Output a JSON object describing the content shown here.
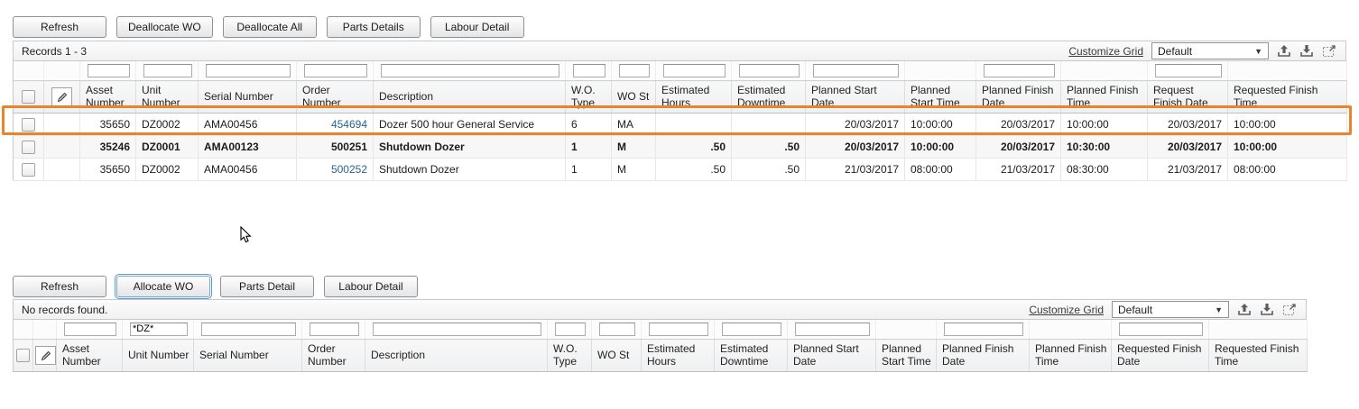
{
  "colors": {
    "highlight_border": "#E8842B",
    "order_link_blue": "#28628F",
    "focus_ring_blue": "#5B9BD5"
  },
  "top_panel": {
    "buttons": [
      "Refresh",
      "Deallocate WO",
      "Deallocate All",
      "Parts Details",
      "Labour Detail"
    ],
    "records_label": "Records 1 - 3",
    "customize_grid_label": "Customize Grid",
    "grid_format": "Default",
    "icons": [
      "chevron-down-icon",
      "export-grid-icon",
      "import-grid-icon",
      "expand-grid-icon",
      "row-edit-pencil-icon"
    ],
    "columns": [
      "Asset Number",
      "Unit Number",
      "Serial Number",
      "Order Number",
      "Description",
      "W.O. Type",
      "WO St",
      "Estimated Hours",
      "Estimated Downtime",
      "Planned Start Date",
      "Planned Start Time",
      "Planned Finish Date",
      "Planned Finish Time",
      "Request Finish Date",
      "Requested Finish Time"
    ],
    "rows": [
      {
        "asset_number": "35650",
        "unit_number": "DZ0002",
        "serial_number": "AMA00456",
        "order_number": "454694",
        "description": "Dozer 500 hour General Service",
        "wo_type": "6",
        "wo_status": "MA",
        "estimated_hours": "",
        "estimated_downtime": "",
        "planned_start_date": "20/03/2017",
        "planned_start_time": "10:00:00",
        "planned_finish_date": "20/03/2017",
        "planned_finish_time": "10:00:00",
        "request_finish_date": "20/03/2017",
        "requested_finish_time": "10:00:00",
        "highlighted": true,
        "bold": false,
        "order_is_link": true
      },
      {
        "asset_number": "35246",
        "unit_number": "DZ0001",
        "serial_number": "AMA00123",
        "order_number": "500251",
        "description": "Shutdown Dozer",
        "wo_type": "1",
        "wo_status": "M",
        "estimated_hours": ".50",
        "estimated_downtime": ".50",
        "planned_start_date": "20/03/2017",
        "planned_start_time": "10:00:00",
        "planned_finish_date": "20/03/2017",
        "planned_finish_time": "10:30:00",
        "request_finish_date": "20/03/2017",
        "requested_finish_time": "10:00:00",
        "highlighted": false,
        "bold": true,
        "order_is_link": false
      },
      {
        "asset_number": "35650",
        "unit_number": "DZ0002",
        "serial_number": "AMA00456",
        "order_number": "500252",
        "description": "Shutdown Dozer",
        "wo_type": "1",
        "wo_status": "M",
        "estimated_hours": ".50",
        "estimated_downtime": ".50",
        "planned_start_date": "21/03/2017",
        "planned_start_time": "08:00:00",
        "planned_finish_date": "21/03/2017",
        "planned_finish_time": "08:30:00",
        "request_finish_date": "21/03/2017",
        "requested_finish_time": "08:00:00",
        "highlighted": false,
        "bold": false,
        "order_is_link": true
      }
    ]
  },
  "bottom_panel": {
    "buttons": [
      "Refresh",
      "Allocate WO",
      "Parts Detail",
      "Labour Detail"
    ],
    "focused_button": "Allocate WO",
    "records_label": "No records found.",
    "customize_grid_label": "Customize Grid",
    "grid_format": "Default",
    "columns": [
      "Asset Number",
      "Unit Number",
      "Serial Number",
      "Order Number",
      "Description",
      "W.O. Type",
      "WO St",
      "Estimated Hours",
      "Estimated Downtime",
      "Planned Start Date",
      "Planned Start Time",
      "Planned Finish Date",
      "Planned Finish Time",
      "Requested Finish Date",
      "Requested Finish Time"
    ],
    "filters": {
      "unit_number": "*DZ*"
    },
    "rows": []
  }
}
